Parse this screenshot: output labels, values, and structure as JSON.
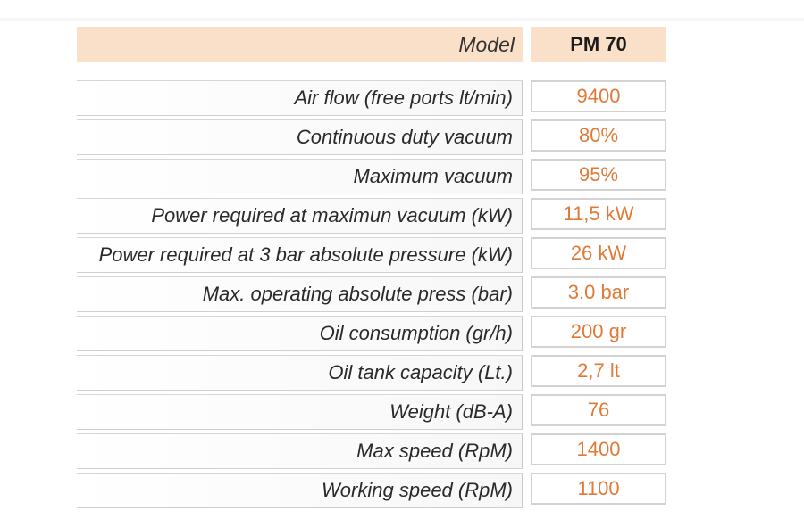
{
  "table": {
    "header": {
      "label": "Model",
      "value": "PM 70"
    },
    "rows": [
      {
        "label": "Air flow (free ports lt/min)",
        "value": "9400"
      },
      {
        "label": "Continuous duty vacuum",
        "value": "80%"
      },
      {
        "label": "Maximum vacuum",
        "value": "95%"
      },
      {
        "label": "Power required at maximun vacuum (kW)",
        "value": "11,5 kW"
      },
      {
        "label": "Power required at 3 bar absolute pressure (kW)",
        "value": "26 kW"
      },
      {
        "label": "Max. operating absolute press (bar)",
        "value": "3.0 bar"
      },
      {
        "label": "Oil consumption (gr/h)",
        "value": "200 gr"
      },
      {
        "label": "Oil tank capacity (Lt.)",
        "value": "2,7 lt"
      },
      {
        "label": "Weight (dB-A)",
        "value": "76"
      },
      {
        "label": "Max speed (RpM)",
        "value": "1400"
      },
      {
        "label": "Working speed (RpM)",
        "value": "1100"
      }
    ],
    "colors": {
      "header_bg": "#fbe0c9",
      "value_text": "#e07a36",
      "label_text": "#2a2a2a"
    }
  }
}
